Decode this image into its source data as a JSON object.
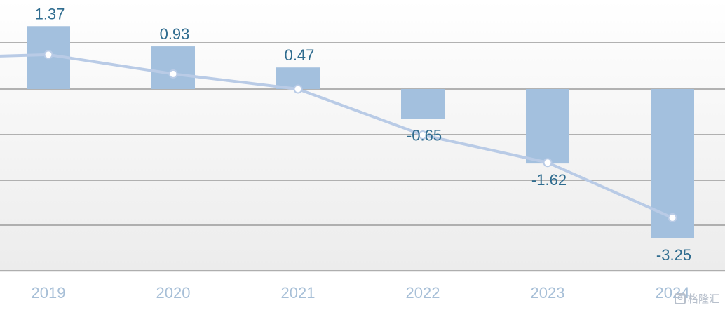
{
  "chart_data": {
    "type": "bar",
    "categories": [
      "2019",
      "2020",
      "2021",
      "2022",
      "2023",
      "2024"
    ],
    "series": [
      {
        "type": "bar",
        "values": [
          1.37,
          0.93,
          0.47,
          -0.65,
          -1.62,
          -3.25
        ]
      },
      {
        "type": "line",
        "values": [
          0.75,
          0.33,
          0.0,
          -1.0,
          -1.6,
          -2.8
        ]
      }
    ],
    "data_labels": [
      "1.37",
      "0.93",
      "0.47",
      "-0.65",
      "-1.62",
      "-3.25"
    ],
    "title": "",
    "xlabel": "",
    "ylabel": "",
    "ylim": [
      -4.0,
      1.9
    ],
    "grid": true,
    "legend": "none",
    "colors": {
      "bar": "#a3c0de",
      "line": "#b9cbe6",
      "marker_fill": "#ffffff",
      "label": "#2f6c8f",
      "tick": "#a7bfd7",
      "grid": "#9a9a9a"
    }
  },
  "watermark": {
    "mark": "G",
    "text": "格隆汇"
  }
}
